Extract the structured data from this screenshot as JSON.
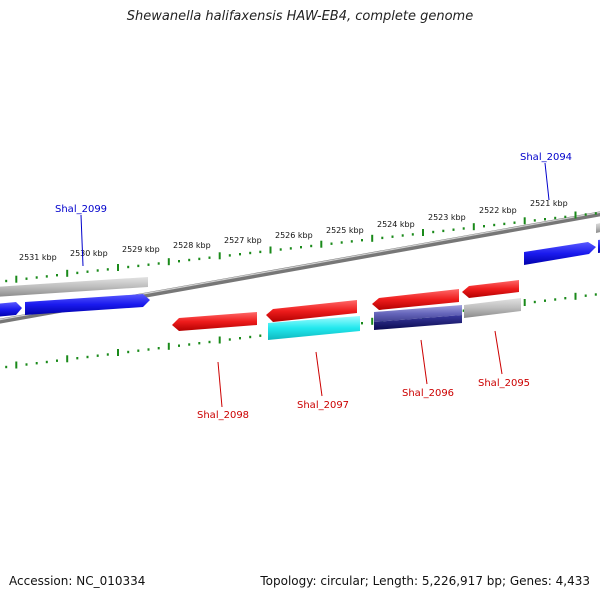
{
  "title": "Shewanella halifaxensis HAW-EB4, complete genome",
  "footer": {
    "accession": "Accession: NC_010334",
    "topology": "Topology: circular; Length: 5,226,917 bp; Genes: 4,433"
  },
  "scale_labels": [
    "2531 kbp",
    "2530 kbp",
    "2529 kbp",
    "2528 kbp",
    "2527 kbp",
    "2526 kbp",
    "2525 kbp",
    "2524 kbp",
    "2523 kbp",
    "2522 kbp",
    "2521 kbp"
  ],
  "gene_labels": [
    {
      "name": "Shal_2099",
      "color": "#0000cc"
    },
    {
      "name": "Shal_2094",
      "color": "#0000cc"
    },
    {
      "name": "Shal_2098",
      "color": "#cc0000"
    },
    {
      "name": "Shal_2097",
      "color": "#cc0000"
    },
    {
      "name": "Shal_2096",
      "color": "#cc0000"
    },
    {
      "name": "Shal_2095",
      "color": "#cc0000"
    }
  ],
  "colors": {
    "forward": "#1a1aee",
    "reverse": "#ee1c1c",
    "grey": "#b8b8b8",
    "cyan": "#22e8ee",
    "purple": "#6666bb",
    "navy": "#11116e",
    "backbone": "#777777",
    "tick": "#1a8a1a"
  }
}
